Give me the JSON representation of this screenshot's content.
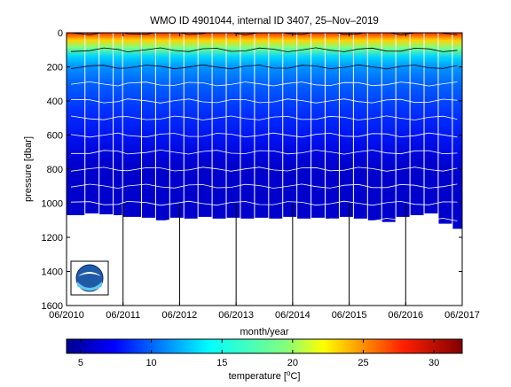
{
  "chart_data": [
    {
      "type": "heatmap",
      "title": "WMO ID 4901044, internal ID 3407, 25–Nov–2019",
      "xlabel": "month/year",
      "ylabel": "pressure [dbar]",
      "x_tick_labels": [
        "06/2010",
        "06/2011",
        "06/2012",
        "06/2013",
        "06/2014",
        "06/2015",
        "06/2016",
        "06/2017"
      ],
      "y_tick_labels": [
        "0",
        "200",
        "400",
        "600",
        "800",
        "1000",
        "1200",
        "1400",
        "1600"
      ],
      "ylim": [
        0,
        1600
      ],
      "y_reversed": true,
      "xlim": [
        "2010-06",
        "2017-06"
      ],
      "vertical_reference_lines": [
        "2011-06",
        "2012-06",
        "2013-06",
        "2014-06",
        "2015-06",
        "2016-06"
      ],
      "profiles_bottom_depth_dbar": [
        [
          "2010-06",
          1070
        ],
        [
          "2010-10",
          1060
        ],
        [
          "2011-01",
          1065
        ],
        [
          "2011-04",
          1070
        ],
        [
          "2011-06",
          1080
        ],
        [
          "2011-10",
          1085
        ],
        [
          "2012-01",
          1100
        ],
        [
          "2012-04",
          1085
        ],
        [
          "2012-07",
          1090
        ],
        [
          "2012-10",
          1080
        ],
        [
          "2013-01",
          1090
        ],
        [
          "2013-04",
          1085
        ],
        [
          "2013-07",
          1090
        ],
        [
          "2013-10",
          1085
        ],
        [
          "2014-01",
          1090
        ],
        [
          "2014-04",
          1080
        ],
        [
          "2014-07",
          1090
        ],
        [
          "2014-10",
          1085
        ],
        [
          "2015-01",
          1090
        ],
        [
          "2015-04",
          1080
        ],
        [
          "2015-07",
          1090
        ],
        [
          "2015-10",
          1100
        ],
        [
          "2016-01",
          1110
        ],
        [
          "2016-04",
          1080
        ],
        [
          "2016-07",
          1070
        ],
        [
          "2016-10",
          1060
        ],
        [
          "2017-01",
          1120
        ],
        [
          "2017-04",
          1150
        ]
      ],
      "temperature_at_depth_degC": [
        [
          0,
          29
        ],
        [
          100,
          22
        ],
        [
          200,
          16
        ],
        [
          300,
          12
        ],
        [
          400,
          10
        ],
        [
          500,
          8.5
        ],
        [
          600,
          7.5
        ],
        [
          700,
          6.8
        ],
        [
          800,
          6
        ],
        [
          900,
          5.5
        ],
        [
          1000,
          5
        ],
        [
          1100,
          4.5
        ]
      ],
      "logo": "noaa-logo"
    },
    {
      "type": "colorbar",
      "xlabel": "temperature [°C]",
      "tick_labels": [
        "5",
        "10",
        "15",
        "20",
        "25",
        "30"
      ],
      "range": [
        4,
        32
      ],
      "colormap": "jet"
    }
  ]
}
